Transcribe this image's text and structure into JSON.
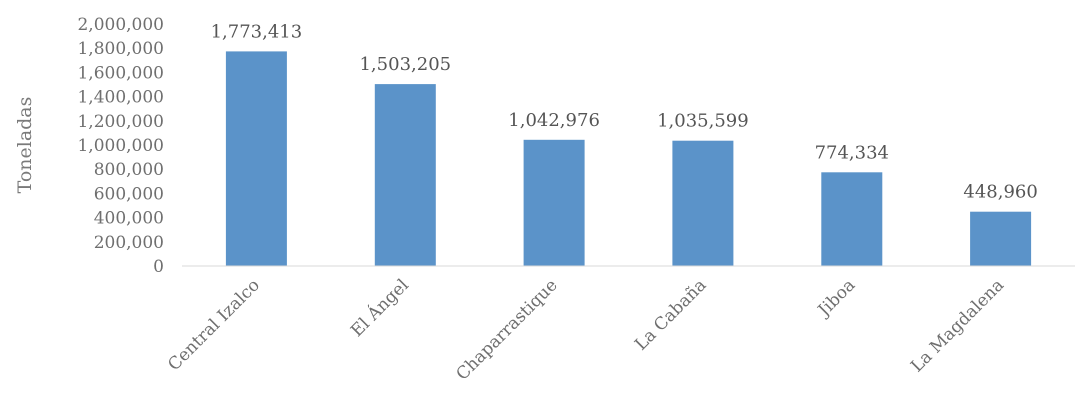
{
  "chart_data": {
    "type": "bar",
    "title": "",
    "xlabel": "",
    "ylabel": "Toneladas",
    "categories": [
      "Central Izalco",
      "El Ángel",
      "Chaparrastique",
      "La Cabaña",
      "Jiboa",
      "La Magdalena"
    ],
    "values": [
      1773413,
      1503205,
      1042976,
      1035599,
      774334,
      448960
    ],
    "value_labels": [
      "1,773,413",
      "1,503,205",
      "1,042,976",
      "1,035,599",
      "774,334",
      "448,960"
    ],
    "ylim": [
      0,
      2000000
    ],
    "yticks": [
      0,
      200000,
      400000,
      600000,
      800000,
      1000000,
      1200000,
      1400000,
      1600000,
      1800000,
      2000000
    ],
    "ytick_labels": [
      "0",
      "200,000",
      "400,000",
      "600,000",
      "800,000",
      "1,000,000",
      "1,200,000",
      "1,400,000",
      "1,600,000",
      "1,800,000",
      "2,000,000"
    ],
    "grid": false,
    "legend": "none",
    "bar_color": "#5b93c9",
    "axis_color": "#d9d9d9"
  }
}
